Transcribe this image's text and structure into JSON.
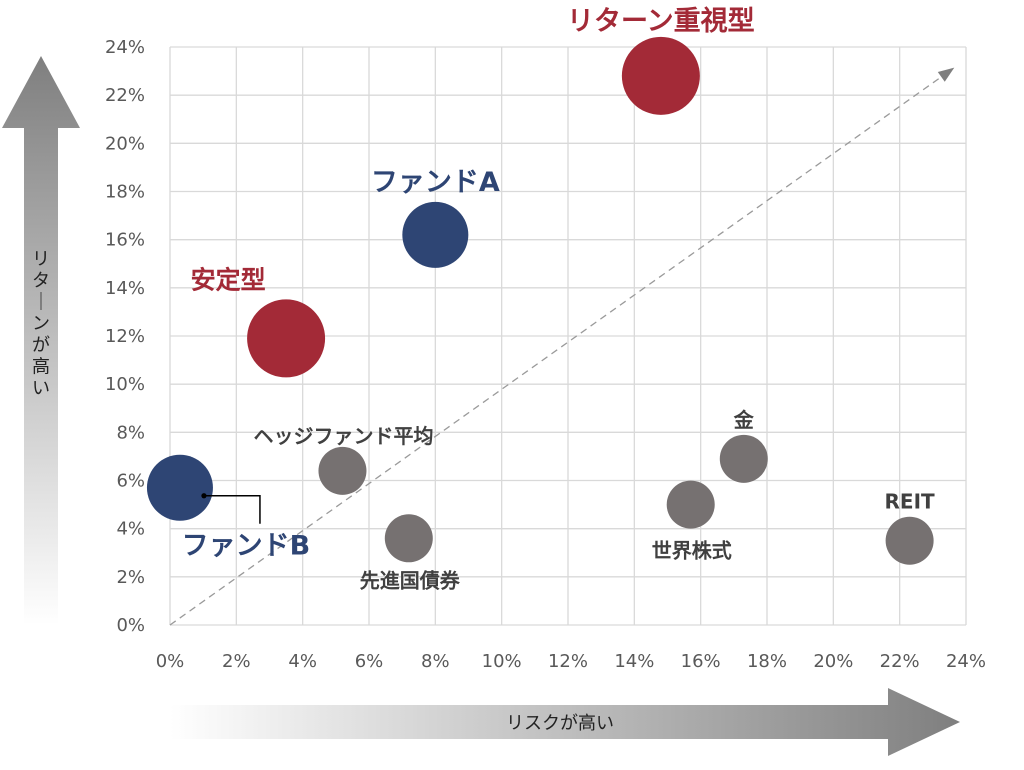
{
  "chart_data": {
    "type": "bubble",
    "xlabel": "リスクが高い",
    "ylabel": "リターンが高い",
    "xlim": [
      0,
      24
    ],
    "ylim": [
      0,
      24
    ],
    "x_ticks": [
      "0%",
      "2%",
      "4%",
      "6%",
      "8%",
      "10%",
      "12%",
      "14%",
      "16%",
      "18%",
      "20%",
      "22%",
      "24%"
    ],
    "y_ticks": [
      "0%",
      "2%",
      "4%",
      "6%",
      "8%",
      "10%",
      "12%",
      "14%",
      "16%",
      "18%",
      "20%",
      "22%",
      "24%"
    ],
    "grid": true,
    "reference_line": "diagonal-dashed",
    "colors": {
      "red": "#A32A37",
      "navy": "#2E4574",
      "gray": "#767171"
    },
    "points": [
      {
        "label": "リターン重視型",
        "x": 14.8,
        "y": 22.8,
        "size": "large",
        "color": "red"
      },
      {
        "label": "ファンドA",
        "x": 8.0,
        "y": 16.2,
        "size": "medium",
        "color": "navy"
      },
      {
        "label": "安定型",
        "x": 3.5,
        "y": 11.9,
        "size": "large",
        "color": "red"
      },
      {
        "label": "ファンドB",
        "x": 0.3,
        "y": 5.7,
        "size": "medium",
        "color": "navy"
      },
      {
        "label": "ヘッジファンド平均",
        "x": 5.2,
        "y": 6.4,
        "size": "small",
        "color": "gray"
      },
      {
        "label": "先進国債券",
        "x": 7.2,
        "y": 3.6,
        "size": "small",
        "color": "gray"
      },
      {
        "label": "世界株式",
        "x": 15.7,
        "y": 5.0,
        "size": "small",
        "color": "gray"
      },
      {
        "label": "金",
        "x": 17.3,
        "y": 6.9,
        "size": "small",
        "color": "gray"
      },
      {
        "label": "REIT",
        "x": 22.3,
        "y": 3.5,
        "size": "small",
        "color": "gray"
      }
    ]
  }
}
